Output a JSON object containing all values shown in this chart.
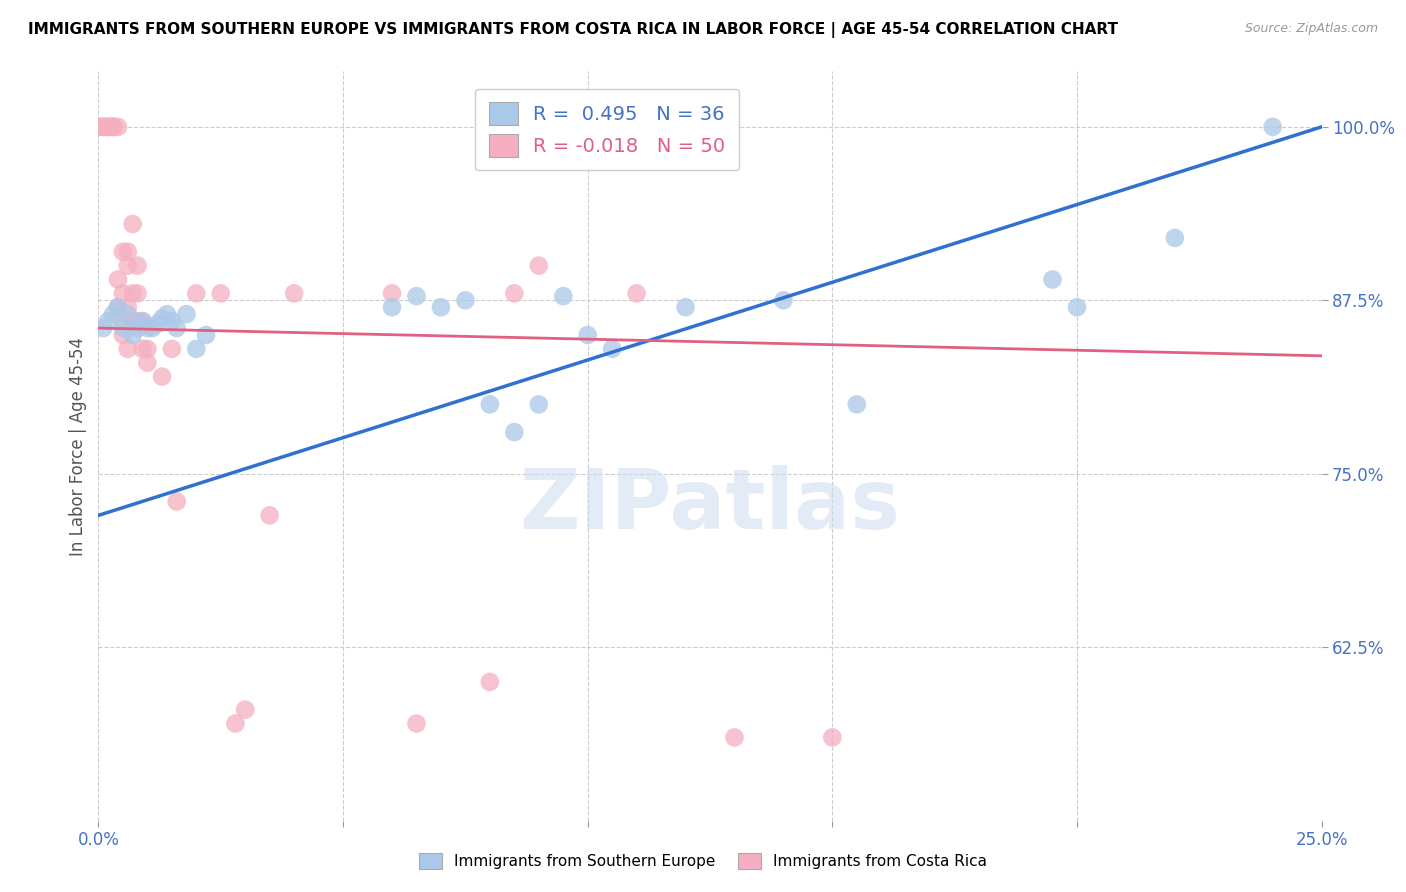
{
  "title": "IMMIGRANTS FROM SOUTHERN EUROPE VS IMMIGRANTS FROM COSTA RICA IN LABOR FORCE | AGE 45-54 CORRELATION CHART",
  "source": "Source: ZipAtlas.com",
  "ylabel": "In Labor Force | Age 45-54",
  "x_min": 0.0,
  "x_max": 0.25,
  "y_min": 0.5,
  "y_max": 1.04,
  "x_ticks": [
    0.0,
    0.05,
    0.1,
    0.15,
    0.2,
    0.25
  ],
  "y_ticks": [
    0.625,
    0.75,
    0.875,
    1.0
  ],
  "y_tick_labels": [
    "62.5%",
    "75.0%",
    "87.5%",
    "100.0%"
  ],
  "blue_R": 0.495,
  "blue_N": 36,
  "pink_R": -0.018,
  "pink_N": 50,
  "blue_color": "#aac8e8",
  "pink_color": "#f5afc0",
  "blue_line_color": "#3070d0",
  "pink_line_color": "#e06080",
  "watermark": "ZIPatlas",
  "blue_scatter_x": [
    0.001,
    0.002,
    0.003,
    0.004,
    0.005,
    0.006,
    0.007,
    0.008,
    0.009,
    0.01,
    0.011,
    0.012,
    0.013,
    0.014,
    0.015,
    0.016,
    0.018,
    0.02,
    0.022,
    0.06,
    0.065,
    0.07,
    0.075,
    0.08,
    0.085,
    0.09,
    0.095,
    0.1,
    0.105,
    0.12,
    0.14,
    0.155,
    0.195,
    0.2,
    0.22,
    0.24
  ],
  "blue_scatter_y": [
    0.855,
    0.86,
    0.865,
    0.87,
    0.855,
    0.865,
    0.85,
    0.855,
    0.86,
    0.855,
    0.855,
    0.858,
    0.862,
    0.865,
    0.86,
    0.855,
    0.865,
    0.84,
    0.85,
    0.87,
    0.878,
    0.87,
    0.875,
    0.8,
    0.78,
    0.8,
    0.878,
    0.85,
    0.84,
    0.87,
    0.875,
    0.8,
    0.89,
    0.87,
    0.92,
    1.0
  ],
  "pink_scatter_x": [
    0.0,
    0.001,
    0.001,
    0.001,
    0.002,
    0.002,
    0.002,
    0.002,
    0.003,
    0.003,
    0.003,
    0.003,
    0.004,
    0.004,
    0.004,
    0.005,
    0.005,
    0.005,
    0.005,
    0.006,
    0.006,
    0.006,
    0.006,
    0.007,
    0.007,
    0.007,
    0.008,
    0.008,
    0.008,
    0.009,
    0.009,
    0.01,
    0.01,
    0.013,
    0.015,
    0.016,
    0.02,
    0.025,
    0.028,
    0.03,
    0.035,
    0.04,
    0.06,
    0.065,
    0.08,
    0.085,
    0.09,
    0.11,
    0.13,
    0.15
  ],
  "pink_scatter_y": [
    1.0,
    1.0,
    1.0,
    1.0,
    1.0,
    1.0,
    1.0,
    1.0,
    1.0,
    1.0,
    1.0,
    1.0,
    1.0,
    0.89,
    0.87,
    0.86,
    0.88,
    0.91,
    0.85,
    0.9,
    0.91,
    0.87,
    0.84,
    0.86,
    0.93,
    0.88,
    0.9,
    0.88,
    0.86,
    0.86,
    0.84,
    0.84,
    0.83,
    0.82,
    0.84,
    0.73,
    0.88,
    0.88,
    0.57,
    0.58,
    0.72,
    0.88,
    0.88,
    0.57,
    0.6,
    0.88,
    0.9,
    0.88,
    0.56,
    0.56
  ]
}
